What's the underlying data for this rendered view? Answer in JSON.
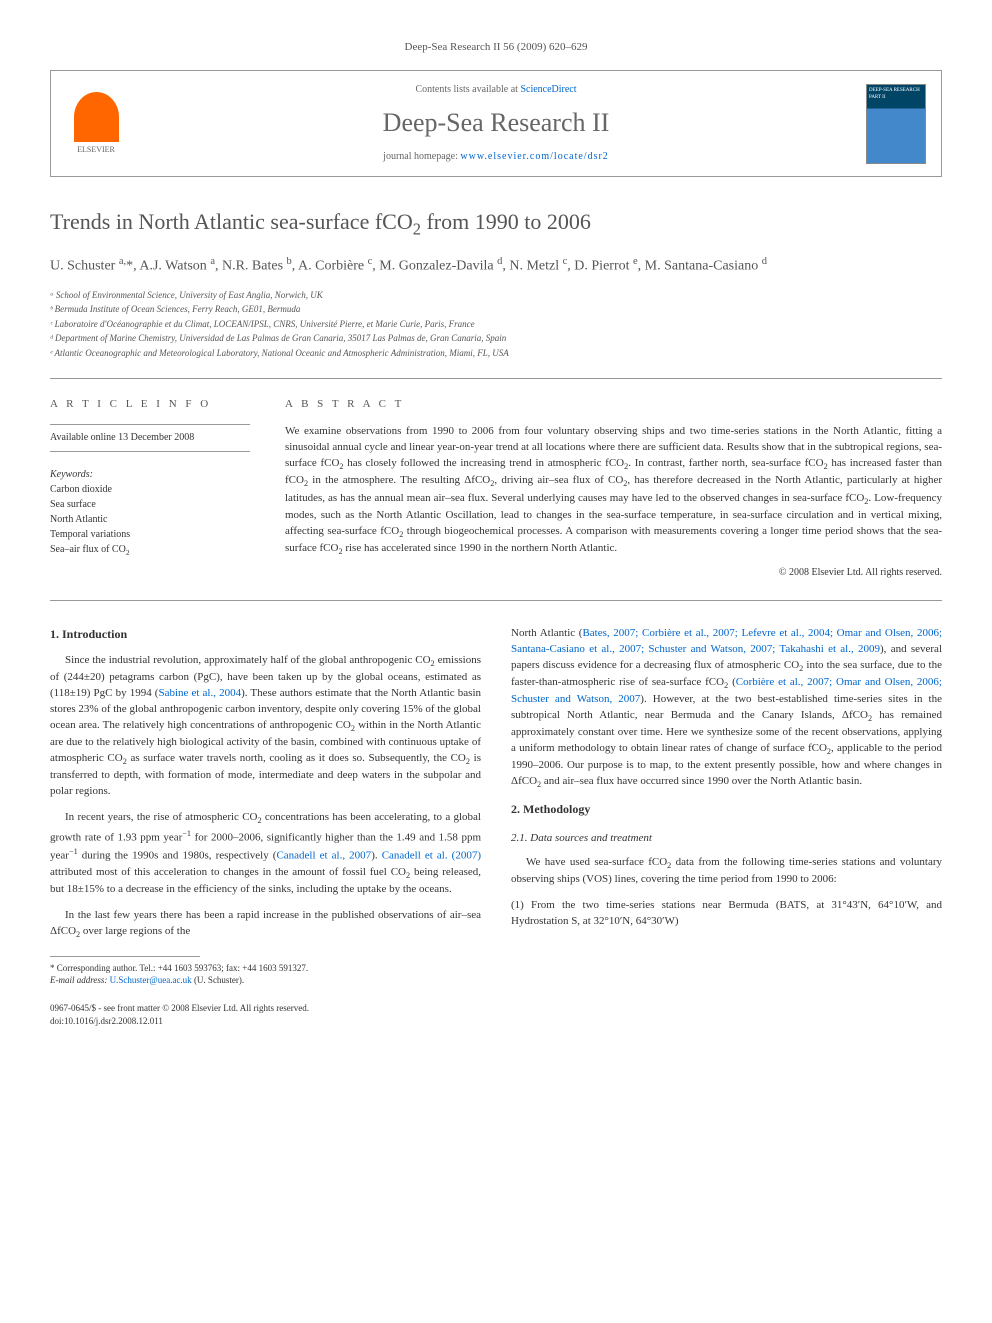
{
  "journal_ref": "Deep-Sea Research II 56 (2009) 620–629",
  "header": {
    "contents_prefix": "Contents lists available at ",
    "contents_link": "ScienceDirect",
    "journal_title": "Deep-Sea Research II",
    "homepage_prefix": "journal homepage: ",
    "homepage_url": "www.elsevier.com/locate/dsr2",
    "elsevier_label": "ELSEVIER",
    "cover_label": "DEEP-SEA RESEARCH PART II"
  },
  "article": {
    "title_html": "Trends in North Atlantic sea-surface fCO<sub>2</sub> from 1990 to 2006",
    "authors_html": "U. Schuster <sup>a,</sup>*, A.J. Watson <sup>a</sup>, N.R. Bates <sup>b</sup>, A. Corbière <sup>c</sup>, M. Gonzalez-Davila <sup>d</sup>, N. Metzl <sup>c</sup>, D. Pierrot <sup>e</sup>, M. Santana-Casiano <sup>d</sup>",
    "affiliations": [
      "ᵃ School of Environmental Science, University of East Anglia, Norwich, UK",
      "ᵇ Bermuda Institute of Ocean Sciences, Ferry Reach, GE01, Bermuda",
      "ᶜ Laboratoire d'Océanographie et du Climat, LOCEAN/IPSL, CNRS, Université Pierre, et Marie Curie, Paris, France",
      "ᵈ Department of Marine Chemistry, Universidad de Las Palmas de Gran Canaria, 35017 Las Palmas de, Gran Canaria, Spain",
      "ᵉ Atlantic Oceanographic and Meteorological Laboratory, National Oceanic and Atmospheric Administration, Miami, FL, USA"
    ]
  },
  "info": {
    "label": "A R T I C L E   I N F O",
    "available": "Available online 13 December 2008",
    "keywords_label": "Keywords:",
    "keywords_html": "Carbon dioxide<br>Sea surface<br>North Atlantic<br>Temporal variations<br>Sea–air flux of CO<sub>2</sub>"
  },
  "abstract": {
    "label": "A B S T R A C T",
    "text_html": "We examine observations from 1990 to 2006 from four voluntary observing ships and two time-series stations in the North Atlantic, fitting a sinusoidal annual cycle and linear year-on-year trend at all locations where there are sufficient data. Results show that in the subtropical regions, sea-surface fCO<sub>2</sub> has closely followed the increasing trend in atmospheric fCO<sub>2</sub>. In contrast, farther north, sea-surface fCO<sub>2</sub> has increased faster than fCO<sub>2</sub> in the atmosphere. The resulting ΔfCO<sub>2</sub>, driving air–sea flux of CO<sub>2</sub>, has therefore decreased in the North Atlantic, particularly at higher latitudes, as has the annual mean air–sea flux. Several underlying causes may have led to the observed changes in sea-surface fCO<sub>2</sub>. Low-frequency modes, such as the North Atlantic Oscillation, lead to changes in the sea-surface temperature, in sea-surface circulation and in vertical mixing, affecting sea-surface fCO<sub>2</sub> through biogeochemical processes. A comparison with measurements covering a longer time period shows that the sea-surface fCO<sub>2</sub> rise has accelerated since 1990 in the northern North Atlantic.",
    "copyright": "© 2008 Elsevier Ltd. All rights reserved."
  },
  "body": {
    "intro_heading": "1. Introduction",
    "intro_p1_html": "Since the industrial revolution, approximately half of the global anthropogenic CO<sub>2</sub> emissions of (244±20) petagrams carbon (PgC), have been taken up by the global oceans, estimated as (118±19) PgC by 1994 (<span class='cite'>Sabine et al., 2004</span>). These authors estimate that the North Atlantic basin stores 23% of the global anthropogenic carbon inventory, despite only covering 15% of the global ocean area. The relatively high concentrations of anthropogenic CO<sub>2</sub> within in the North Atlantic are due to the relatively high biological activity of the basin, combined with continuous uptake of atmospheric CO<sub>2</sub> as surface water travels north, cooling as it does so. Subsequently, the CO<sub>2</sub> is transferred to depth, with formation of mode, intermediate and deep waters in the subpolar and polar regions.",
    "intro_p2_html": "In recent years, the rise of atmospheric CO<sub>2</sub> concentrations has been accelerating, to a global growth rate of 1.93 ppm year<sup>−1</sup> for 2000–2006, significantly higher than the 1.49 and 1.58 ppm year<sup>−1</sup> during the 1990s and 1980s, respectively (<span class='cite'>Canadell et al., 2007</span>). <span class='cite'>Canadell et al. (2007)</span> attributed most of this acceleration to changes in the amount of fossil fuel CO<sub>2</sub> being released, but 18±15% to a decrease in the efficiency of the sinks, including the uptake by the oceans.",
    "intro_p3_html": "In the last few years there has been a rapid increase in the published observations of air–sea ΔfCO<sub>2</sub> over large regions of the",
    "col2_p1_html": "North Atlantic (<span class='cite'>Bates, 2007; Corbière et al., 2007; Lefevre et al., 2004; Omar and Olsen, 2006; Santana-Casiano et al., 2007; Schuster and Watson, 2007; Takahashi et al., 2009</span>), and several papers discuss evidence for a decreasing flux of atmospheric CO<sub>2</sub> into the sea surface, due to the faster-than-atmospheric rise of sea-surface fCO<sub>2</sub> (<span class='cite'>Corbière et al., 2007; Omar and Olsen, 2006; Schuster and Watson, 2007</span>). However, at the two best-established time-series sites in the subtropical North Atlantic, near Bermuda and the Canary Islands, ΔfCO<sub>2</sub> has remained approximately constant over time. Here we synthesize some of the recent observations, applying a uniform methodology to obtain linear rates of change of surface fCO<sub>2</sub>, applicable to the period 1990–2006. Our purpose is to map, to the extent presently possible, how and where changes in ΔfCO<sub>2</sub> and air–sea flux have occurred since 1990 over the North Atlantic basin.",
    "method_heading": "2. Methodology",
    "method_sub": "2.1. Data sources and treatment",
    "method_p1_html": "We have used sea-surface fCO<sub>2</sub> data from the following time-series stations and voluntary observing ships (VOS) lines, covering the time period from 1990 to 2006:",
    "method_item1": "(1) From the two time-series stations near Bermuda (BATS, at 31°43′N, 64°10′W, and Hydrostation S, at 32°10′N, 64°30′W)"
  },
  "footnote": {
    "corr": "* Corresponding author. Tel.: +44 1603 593763; fax: +44 1603 591327.",
    "email_label": "E-mail address: ",
    "email": "U.Schuster@uea.ac.uk",
    "email_suffix": " (U. Schuster)."
  },
  "footer": {
    "issn": "0967-0645/$ - see front matter © 2008 Elsevier Ltd. All rights reserved.",
    "doi": "doi:10.1016/j.dsr2.2008.12.011"
  },
  "colors": {
    "link": "#0066cc",
    "text": "#333333",
    "heading": "#555555",
    "border": "#999999",
    "elsevier_orange": "#ff6600",
    "cover_dark": "#004466",
    "cover_light": "#4488cc"
  }
}
